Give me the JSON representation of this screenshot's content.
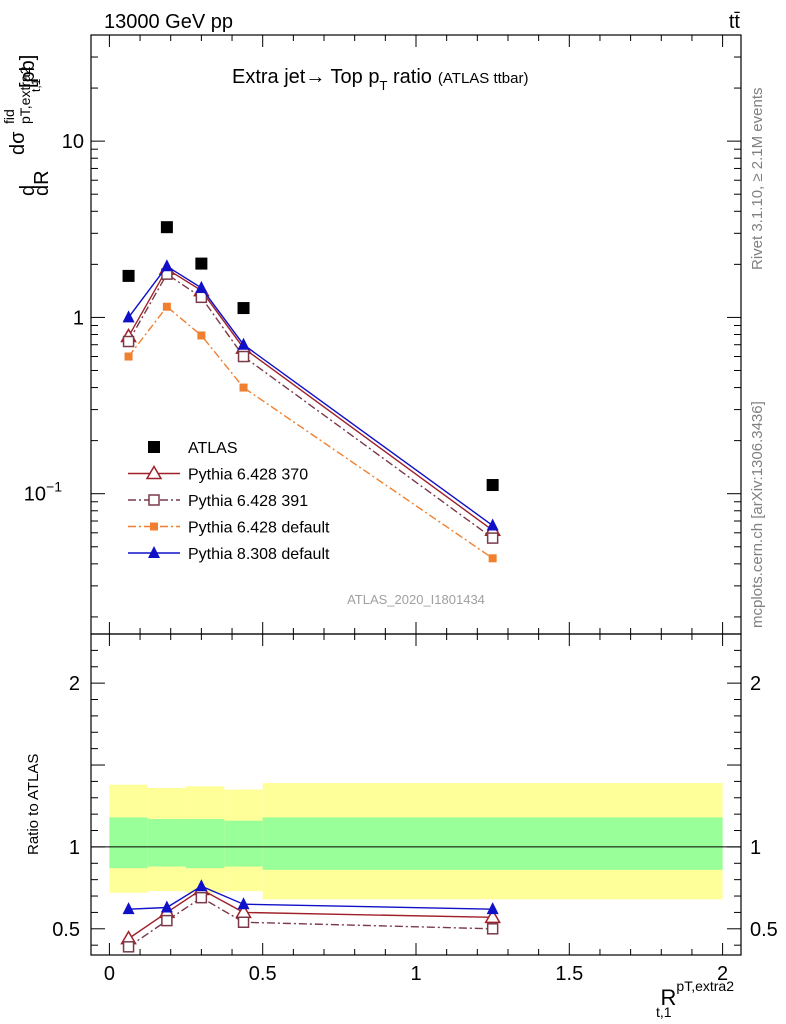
{
  "header": {
    "energy": "13000 GeV pp",
    "process": "tt̄"
  },
  "side_labels": {
    "rivet": "Rivet 3.1.10, ≥ 2.1M events",
    "mcplots": "mcplots.cern.ch [arXiv:1306.3436]"
  },
  "chart_data": [
    {
      "type": "scatter",
      "title": "Extra jet→ Top p",
      "title_sub": "T",
      "title_tail": " ratio",
      "title_note": "(ATLAS ttbar)",
      "watermark": "ATLAS_2020_I1801434",
      "ylabel": {
        "d": "d",
        "sigma": "dσ",
        "sup": "fid",
        "sub": "pT,extra2",
        "dR": "dR",
        "dR_sub": "t,1",
        "unit": "[pb]"
      },
      "xlim": [
        -0.06,
        2.06
      ],
      "ylim": [
        0.016,
        40
      ],
      "yscale": "log",
      "yticks": [
        {
          "v": 0.1,
          "base": "10",
          "exp": "−1"
        },
        {
          "v": 1,
          "base": "1",
          "exp": ""
        },
        {
          "v": 10,
          "base": "10",
          "exp": ""
        }
      ],
      "legend_position": "middle-left",
      "series": [
        {
          "name": "ATLAS",
          "color": "#000000",
          "marker": "square-filled",
          "line": "none",
          "x": [
            0.0625,
            0.1875,
            0.3,
            0.4375,
            1.25
          ],
          "y": [
            1.72,
            3.25,
            2.02,
            1.13,
            0.112
          ]
        },
        {
          "name": "Pythia 6.428 370",
          "color": "#a0202a",
          "marker": "triangle-open",
          "line": "solid",
          "x": [
            0.0625,
            0.1875,
            0.3,
            0.4375,
            1.25
          ],
          "y": [
            0.78,
            1.88,
            1.42,
            0.67,
            0.062
          ]
        },
        {
          "name": "Pythia 6.428 391",
          "color": "#7a3a4a",
          "marker": "square-open",
          "line": "dashdot",
          "x": [
            0.0625,
            0.1875,
            0.3,
            0.4375,
            1.25
          ],
          "y": [
            0.73,
            1.76,
            1.3,
            0.6,
            0.056
          ]
        },
        {
          "name": "Pythia 6.428 default",
          "color": "#f08030",
          "marker": "square-filled-small",
          "line": "dashdot",
          "x": [
            0.0625,
            0.1875,
            0.3,
            0.4375,
            1.25
          ],
          "y": [
            0.6,
            1.15,
            0.79,
            0.4,
            0.043
          ]
        },
        {
          "name": "Pythia 8.308 default",
          "color": "#1010c8",
          "marker": "triangle-filled",
          "line": "solid",
          "x": [
            0.0625,
            0.1875,
            0.3,
            0.4375,
            1.25
          ],
          "y": [
            1.0,
            1.95,
            1.47,
            0.7,
            0.066
          ]
        }
      ]
    },
    {
      "type": "scatter",
      "ylabel": "Ratio to ATLAS",
      "xlabel": {
        "main": "R",
        "sup": "pT,extra2",
        "sub": "t,1"
      },
      "xlim": [
        -0.06,
        2.06
      ],
      "ylim": [
        0.34,
        2.3
      ],
      "xticks": [
        {
          "v": 0,
          "label": "0"
        },
        {
          "v": 0.5,
          "label": "0.5"
        },
        {
          "v": 1,
          "label": "1"
        },
        {
          "v": 1.5,
          "label": "1.5"
        },
        {
          "v": 2,
          "label": "2"
        }
      ],
      "yticks": [
        {
          "v": 0.5,
          "label": "0.5"
        },
        {
          "v": 1,
          "label": "1"
        },
        {
          "v": 2,
          "label": "2"
        }
      ],
      "bands": {
        "edges": [
          0,
          0.125,
          0.25,
          0.375,
          0.5,
          2.0
        ],
        "stat_low": [
          0.87,
          0.88,
          0.87,
          0.88,
          0.86
        ],
        "stat_high": [
          1.18,
          1.17,
          1.17,
          1.16,
          1.18
        ],
        "total_low": [
          0.72,
          0.73,
          0.72,
          0.73,
          0.68
        ],
        "total_high": [
          1.38,
          1.36,
          1.37,
          1.35,
          1.39
        ],
        "stat_color": "#99ff99",
        "total_color": "#ffff99"
      },
      "series": [
        {
          "name": "Pythia 6.428 370",
          "color": "#a0202a",
          "marker": "triangle-open",
          "line": "solid",
          "x": [
            0.0625,
            0.1875,
            0.3,
            0.4375,
            1.25
          ],
          "y": [
            0.44,
            0.6,
            0.74,
            0.6,
            0.57
          ],
          "err": [
            0.02,
            0.015,
            0.02,
            0.018,
            0.02
          ]
        },
        {
          "name": "Pythia 6.428 391",
          "color": "#7a3a4a",
          "marker": "square-open",
          "line": "dashdot",
          "x": [
            0.0625,
            0.1875,
            0.3,
            0.4375,
            1.25
          ],
          "y": [
            0.39,
            0.55,
            0.69,
            0.54,
            0.5
          ],
          "err": [
            0.02,
            0.015,
            0.02,
            0.018,
            0.02
          ]
        },
        {
          "name": "Pythia 8.308 default",
          "color": "#1010c8",
          "marker": "triangle-filled",
          "line": "solid",
          "x": [
            0.0625,
            0.1875,
            0.3,
            0.4375,
            1.25
          ],
          "y": [
            0.62,
            0.63,
            0.76,
            0.65,
            0.62
          ],
          "err": [
            0.025,
            0.02,
            0.025,
            0.022,
            0.025
          ]
        }
      ]
    }
  ]
}
